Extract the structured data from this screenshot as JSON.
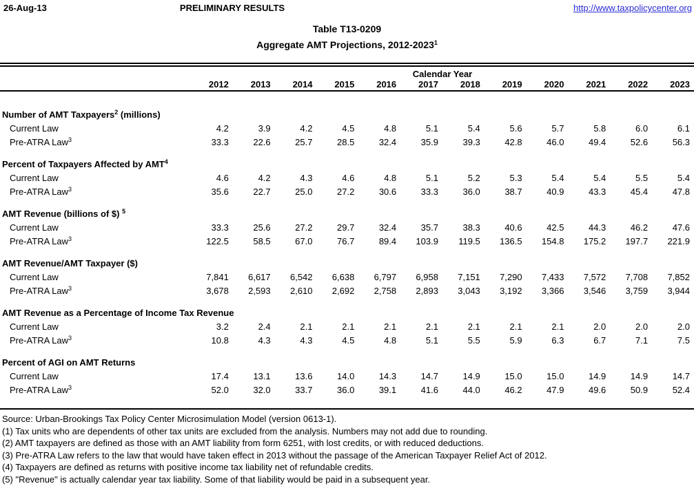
{
  "header": {
    "date": "26-Aug-13",
    "status": "PRELIMINARY RESULTS",
    "link": "http://www.taxpolicycenter.org"
  },
  "title": {
    "line1": "Table T13-0209",
    "line2": "Aggregate AMT Projections, 2012-2023",
    "line2_sup": "1"
  },
  "colors": {
    "link_blue": "#2b2bd9"
  },
  "table": {
    "group_header": "Calendar Year",
    "years": [
      "2012",
      "2013",
      "2014",
      "2015",
      "2016",
      "2017",
      "2018",
      "2019",
      "2020",
      "2021",
      "2022",
      "2023"
    ],
    "sections": [
      {
        "label": "Number of AMT Taxpayers",
        "sup": "2",
        "suffix": " (millions)",
        "rows": [
          {
            "label": "Current Law",
            "sup": "",
            "values": [
              "4.2",
              "3.9",
              "4.2",
              "4.5",
              "4.8",
              "5.1",
              "5.4",
              "5.6",
              "5.7",
              "5.8",
              "6.0",
              "6.1"
            ]
          },
          {
            "label": "Pre-ATRA Law",
            "sup": "3",
            "values": [
              "33.3",
              "22.6",
              "25.7",
              "28.5",
              "32.4",
              "35.9",
              "39.3",
              "42.8",
              "46.0",
              "49.4",
              "52.6",
              "56.3"
            ]
          }
        ]
      },
      {
        "label": "Percent of Taxpayers Affected by AMT",
        "sup": "4",
        "suffix": "",
        "rows": [
          {
            "label": "Current Law",
            "sup": "",
            "values": [
              "4.6",
              "4.2",
              "4.3",
              "4.6",
              "4.8",
              "5.1",
              "5.2",
              "5.3",
              "5.4",
              "5.4",
              "5.5",
              "5.4"
            ]
          },
          {
            "label": "Pre-ATRA Law",
            "sup": "3",
            "values": [
              "35.6",
              "22.7",
              "25.0",
              "27.2",
              "30.6",
              "33.3",
              "36.0",
              "38.7",
              "40.9",
              "43.3",
              "45.4",
              "47.8"
            ]
          }
        ]
      },
      {
        "label": "AMT Revenue (billions of $) ",
        "sup": "5",
        "suffix": "",
        "rows": [
          {
            "label": "Current Law",
            "sup": "",
            "values": [
              "33.3",
              "25.6",
              "27.2",
              "29.7",
              "32.4",
              "35.7",
              "38.3",
              "40.6",
              "42.5",
              "44.3",
              "46.2",
              "47.6"
            ]
          },
          {
            "label": "Pre-ATRA Law",
            "sup": "3",
            "values": [
              "122.5",
              "58.5",
              "67.0",
              "76.7",
              "89.4",
              "103.9",
              "119.5",
              "136.5",
              "154.8",
              "175.2",
              "197.7",
              "221.9"
            ]
          }
        ]
      },
      {
        "label": "AMT Revenue/AMT Taxpayer ($)",
        "sup": "",
        "suffix": "",
        "rows": [
          {
            "label": "Current Law",
            "sup": "",
            "values": [
              "7,841",
              "6,617",
              "6,542",
              "6,638",
              "6,797",
              "6,958",
              "7,151",
              "7,290",
              "7,433",
              "7,572",
              "7,708",
              "7,852"
            ]
          },
          {
            "label": "Pre-ATRA Law",
            "sup": "3",
            "values": [
              "3,678",
              "2,593",
              "2,610",
              "2,692",
              "2,758",
              "2,893",
              "3,043",
              "3,192",
              "3,366",
              "3,546",
              "3,759",
              "3,944"
            ]
          }
        ]
      },
      {
        "label": "AMT Revenue as a Percentage of Income Tax Revenue",
        "sup": "",
        "suffix": "",
        "rows": [
          {
            "label": "Current Law",
            "sup": "",
            "values": [
              "3.2",
              "2.4",
              "2.1",
              "2.1",
              "2.1",
              "2.1",
              "2.1",
              "2.1",
              "2.1",
              "2.0",
              "2.0",
              "2.0"
            ]
          },
          {
            "label": "Pre-ATRA Law",
            "sup": "3",
            "values": [
              "10.8",
              "4.3",
              "4.3",
              "4.5",
              "4.8",
              "5.1",
              "5.5",
              "5.9",
              "6.3",
              "6.7",
              "7.1",
              "7.5"
            ]
          }
        ]
      },
      {
        "label": "Percent of AGI on AMT Returns",
        "sup": "",
        "suffix": "",
        "rows": [
          {
            "label": "Current Law",
            "sup": "",
            "values": [
              "17.4",
              "13.1",
              "13.6",
              "14.0",
              "14.3",
              "14.7",
              "14.9",
              "15.0",
              "15.0",
              "14.9",
              "14.9",
              "14.7"
            ]
          },
          {
            "label": "Pre-ATRA Law",
            "sup": "3",
            "values": [
              "52.0",
              "32.0",
              "33.7",
              "36.0",
              "39.1",
              "41.6",
              "44.0",
              "46.2",
              "47.9",
              "49.6",
              "50.9",
              "52.4"
            ]
          }
        ]
      }
    ]
  },
  "footnotes": [
    "Source: Urban-Brookings Tax Policy Center Microsimulation Model (version 0613-1).",
    "(1) Tax units who are dependents of other tax units are excluded from the analysis. Numbers may not add due to rounding.",
    "(2) AMT taxpayers are defined as those with an AMT liability from form 6251, with lost credits, or with reduced deductions.",
    "(3) Pre-ATRA Law refers to the law that would have taken effect in 2013 without the passage of the American Taxpayer Relief Act of 2012.",
    "(4) Taxpayers are defined as returns with positive income tax liability net of refundable credits.",
    "(5) \"Revenue\" is actually calendar year tax liability.  Some of that liability would be paid in a subsequent year."
  ]
}
